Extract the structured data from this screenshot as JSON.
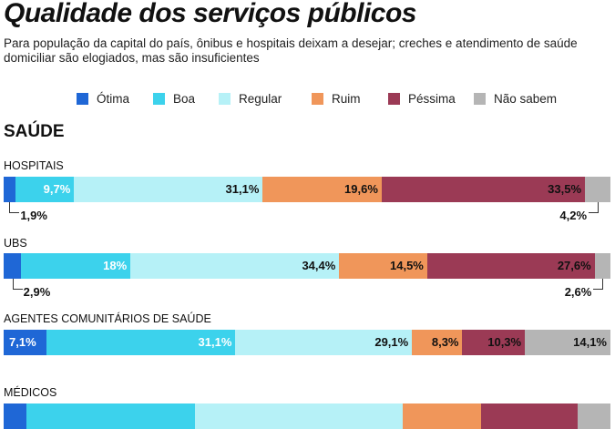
{
  "title": "Qualidade dos serviços públicos",
  "subtitle": "Para população da capital do país, ônibus e hospitais deixam a desejar; creches e atendimento de saúde domiciliar são elogiados, mas são insuficientes",
  "legend": [
    {
      "label": "Ótima",
      "color": "#1f67d6"
    },
    {
      "label": "Boa",
      "color": "#3cd2ec"
    },
    {
      "label": "Regular",
      "color": "#b6f1f7"
    },
    {
      "label": "Ruim",
      "color": "#f0965a"
    },
    {
      "label": "Péssima",
      "color": "#9b3a55"
    },
    {
      "label": "Não sabem",
      "color": "#b5b5b5"
    }
  ],
  "section": "SAÚDE",
  "chart_data": {
    "type": "bar",
    "stacked": true,
    "orientation": "horizontal",
    "title": "Qualidade dos serviços públicos",
    "unit": "%",
    "categories": [
      "HOSPITAIS",
      "UBS",
      "AGENTES COMUNITÁRIOS DE SAÚDE",
      "MÉDICOS"
    ],
    "series": [
      {
        "name": "Ótima",
        "values": [
          1.9,
          2.9,
          7.1,
          3.5
        ],
        "labels": [
          "1,9%",
          "2,9%",
          "7,1%",
          null
        ]
      },
      {
        "name": "Boa",
        "values": [
          9.7,
          18,
          31.1,
          26
        ],
        "labels": [
          "9,7%",
          "18%",
          "31,1%",
          null
        ]
      },
      {
        "name": "Regular",
        "values": [
          31.1,
          34.4,
          29.1,
          32
        ],
        "labels": [
          "31,1%",
          "34,4%",
          "29,1%",
          null
        ]
      },
      {
        "name": "Ruim",
        "values": [
          19.6,
          14.5,
          8.3,
          12
        ],
        "labels": [
          "19,6%",
          "14,5%",
          "8,3%",
          null
        ]
      },
      {
        "name": "Péssima",
        "values": [
          33.5,
          27.6,
          10.3,
          15
        ],
        "labels": [
          "33,5%",
          "27,6%",
          "10,3%",
          null
        ]
      },
      {
        "name": "Não sabem",
        "values": [
          4.2,
          2.6,
          14.1,
          5
        ],
        "labels": [
          "4,2%",
          "2,6%",
          "14,1%",
          null
        ]
      }
    ]
  }
}
